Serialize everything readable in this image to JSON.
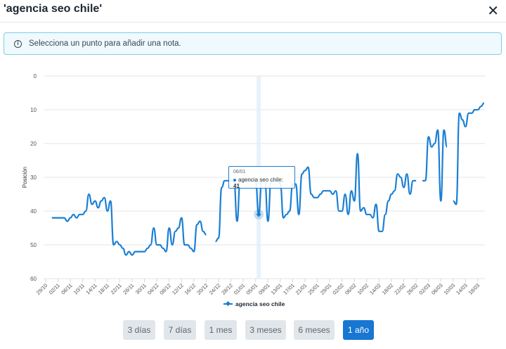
{
  "header": {
    "title": "'agencia seo chile'",
    "close_icon": "close-icon"
  },
  "info": {
    "icon": "info-icon",
    "text": "Selecciona un punto para añadir una nota."
  },
  "tooltip": {
    "date": "06/01",
    "series": "agencia seo chile:",
    "value": "41"
  },
  "range_buttons": [
    {
      "label": "3 días",
      "active": false
    },
    {
      "label": "7 días",
      "active": false
    },
    {
      "label": "1 mes",
      "active": false
    },
    {
      "label": "3 meses",
      "active": false
    },
    {
      "label": "6 meses",
      "active": false
    },
    {
      "label": "1 año",
      "active": true
    }
  ],
  "colors": {
    "series": "#1a7fd4",
    "active_button": "#1777d2"
  },
  "chart_data": {
    "type": "line",
    "title": "",
    "xlabel": "",
    "ylabel": "Posición",
    "y_reversed": true,
    "ylim": [
      0,
      60
    ],
    "y_ticks": [
      0,
      10,
      20,
      30,
      40,
      50,
      60
    ],
    "grid": true,
    "legend": "bottom",
    "x_ticks": [
      "29/10",
      "02/11",
      "06/11",
      "10/11",
      "14/11",
      "18/11",
      "22/11",
      "26/11",
      "30/11",
      "04/12",
      "08/12",
      "12/12",
      "16/12",
      "20/12",
      "24/12",
      "28/12",
      "01/01",
      "05/01",
      "09/01",
      "13/01",
      "17/01",
      "21/01",
      "25/01",
      "29/01",
      "02/02",
      "06/02",
      "10/02",
      "14/02",
      "18/02",
      "22/02",
      "26/02",
      "02/03",
      "06/03",
      "10/03",
      "14/03",
      "18/03"
    ],
    "series": [
      {
        "name": "agencia seo chile",
        "points": [
          [
            "31/10",
            42
          ],
          [
            "01/11",
            42
          ],
          [
            "02/11",
            42
          ],
          [
            "03/11",
            42
          ],
          [
            "04/11",
            42
          ],
          [
            "05/11",
            43
          ],
          [
            "06/11",
            42
          ],
          [
            "07/11",
            41
          ],
          [
            "08/11",
            42
          ],
          [
            "09/11",
            41
          ],
          [
            "10/11",
            41
          ],
          [
            "11/11",
            40
          ],
          [
            "12/11",
            35
          ],
          [
            "13/11",
            38
          ],
          [
            "14/11",
            37
          ],
          [
            "15/11",
            39
          ],
          [
            "16/11",
            37
          ],
          [
            "17/11",
            36
          ],
          [
            "18/11",
            40
          ],
          [
            "19/11",
            37
          ],
          [
            "20/11",
            50
          ],
          [
            "21/11",
            49
          ],
          [
            "22/11",
            50
          ],
          [
            "23/11",
            51
          ],
          [
            "24/11",
            53
          ],
          [
            "25/11",
            52
          ],
          [
            "26/11",
            53
          ],
          [
            "27/11",
            52
          ],
          [
            "28/11",
            52
          ],
          [
            "29/11",
            52
          ],
          [
            "30/11",
            52
          ],
          [
            "01/12",
            51
          ],
          [
            "02/12",
            50
          ],
          [
            "03/12",
            45
          ],
          [
            "04/12",
            50
          ],
          [
            "05/12",
            50
          ],
          [
            "06/12",
            51
          ],
          [
            "07/12",
            52
          ],
          [
            "08/12",
            45
          ],
          [
            "09/12",
            50
          ],
          [
            "10/12",
            46
          ],
          [
            "11/12",
            45
          ],
          [
            "12/12",
            42
          ],
          [
            "13/12",
            50
          ],
          [
            "14/12",
            50
          ],
          [
            "15/12",
            51
          ],
          [
            "16/12",
            52
          ],
          [
            "17/12",
            44
          ],
          [
            "18/12",
            43
          ],
          [
            "19/12",
            46
          ],
          [
            "20/12",
            47
          ],
          [
            "21/12",
            null
          ],
          [
            "22/12",
            null
          ],
          [
            "23/12",
            49
          ],
          [
            "24/12",
            48
          ],
          [
            "25/12",
            33
          ],
          [
            "26/12",
            31
          ],
          [
            "27/12",
            31
          ],
          [
            "28/12",
            31
          ],
          [
            "29/12",
            31
          ],
          [
            "30/12",
            43
          ],
          [
            "31/12",
            31
          ],
          [
            "01/01",
            31
          ],
          [
            "02/01",
            31
          ],
          [
            "03/01",
            31
          ],
          [
            "04/01",
            31
          ],
          [
            "05/01",
            31
          ],
          [
            "06/01",
            41
          ],
          [
            "07/01",
            31
          ],
          [
            "08/01",
            31
          ],
          [
            "09/01",
            43
          ],
          [
            "10/01",
            31
          ],
          [
            "11/01",
            31
          ],
          [
            "12/01",
            31
          ],
          [
            "13/01",
            32
          ],
          [
            "14/01",
            42
          ],
          [
            "15/01",
            41
          ],
          [
            "16/01",
            40
          ],
          [
            "17/01",
            32
          ],
          [
            "18/01",
            32
          ],
          [
            "19/01",
            41
          ],
          [
            "20/01",
            29
          ],
          [
            "21/01",
            28
          ],
          [
            "22/01",
            27
          ],
          [
            "23/01",
            35
          ],
          [
            "24/01",
            36
          ],
          [
            "25/01",
            36
          ],
          [
            "26/01",
            35
          ],
          [
            "27/01",
            34
          ],
          [
            "28/01",
            34
          ],
          [
            "29/01",
            34
          ],
          [
            "30/01",
            35
          ],
          [
            "31/01",
            34
          ],
          [
            "01/02",
            40
          ],
          [
            "02/02",
            40
          ],
          [
            "03/02",
            35
          ],
          [
            "04/02",
            41
          ],
          [
            "05/02",
            34
          ],
          [
            "06/02",
            37
          ],
          [
            "07/02",
            23
          ],
          [
            "08/02",
            40
          ],
          [
            "09/02",
            39
          ],
          [
            "10/02",
            41
          ],
          [
            "11/02",
            41
          ],
          [
            "12/02",
            42
          ],
          [
            "13/02",
            38
          ],
          [
            "14/02",
            46
          ],
          [
            "15/02",
            46
          ],
          [
            "16/02",
            41
          ],
          [
            "17/02",
            37
          ],
          [
            "18/02",
            35
          ],
          [
            "19/02",
            34
          ],
          [
            "20/02",
            29
          ],
          [
            "21/02",
            30
          ],
          [
            "22/02",
            33
          ],
          [
            "23/02",
            29
          ],
          [
            "24/02",
            35
          ],
          [
            "25/02",
            31
          ],
          [
            "26/02",
            31
          ],
          [
            "27/02",
            null
          ],
          [
            "28/02",
            31
          ],
          [
            "01/03",
            31
          ],
          [
            "02/03",
            18
          ],
          [
            "03/03",
            21
          ],
          [
            "04/03",
            20
          ],
          [
            "05/03",
            16
          ],
          [
            "06/03",
            37
          ],
          [
            "07/03",
            16
          ],
          [
            "08/03",
            21
          ],
          [
            "09/03",
            null
          ],
          [
            "10/03",
            37
          ],
          [
            "11/03",
            38
          ],
          [
            "12/03",
            11
          ],
          [
            "13/03",
            13
          ],
          [
            "14/03",
            15
          ],
          [
            "15/03",
            11
          ],
          [
            "16/03",
            11
          ],
          [
            "17/03",
            10
          ],
          [
            "18/03",
            10
          ],
          [
            "19/03",
            9
          ],
          [
            "20/03",
            8
          ]
        ]
      }
    ]
  }
}
